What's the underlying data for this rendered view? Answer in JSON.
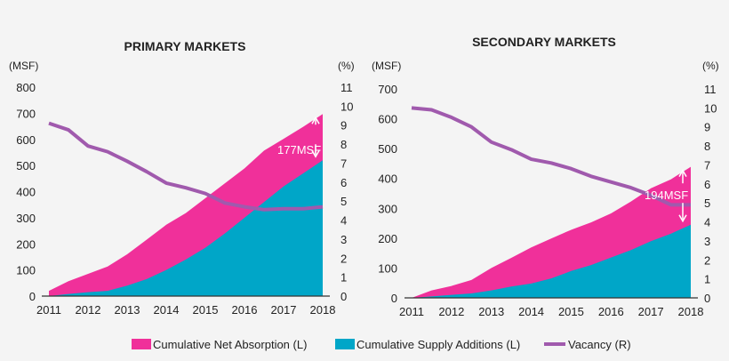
{
  "colors": {
    "absorption": "#f0309a",
    "supply": "#00a6c8",
    "vacancy": "#a05aad",
    "background": "#f4f4f4"
  },
  "legend": [
    {
      "label": "Cumulative Net Absorption (L)",
      "type": "area",
      "color_key": "absorption"
    },
    {
      "label": "Cumulative Supply Additions (L)",
      "type": "area",
      "color_key": "supply"
    },
    {
      "label": "Vacancy (R)",
      "type": "line",
      "color_key": "vacancy"
    }
  ],
  "legend_placement": "bottom",
  "chart_data": [
    {
      "type": "area",
      "title": "PRIMARY MARKETS",
      "ylabel": "(MSF)",
      "y2label": "(%)",
      "ylim": [
        0,
        800
      ],
      "yticks": [
        0,
        100,
        200,
        300,
        400,
        500,
        600,
        700,
        800
      ],
      "y2lim": [
        0,
        11
      ],
      "y2ticks": [
        0,
        1,
        2,
        3,
        4,
        5,
        6,
        7,
        8,
        9,
        10,
        11
      ],
      "xticks": [
        "2011",
        "2012",
        "2013",
        "2014",
        "2015",
        "2016",
        "2017",
        "2018"
      ],
      "x": [
        2011,
        2011.5,
        2012,
        2012.5,
        2013,
        2013.5,
        2014,
        2014.5,
        2015,
        2015.5,
        2016,
        2016.5,
        2017,
        2017.5,
        2018
      ],
      "series": [
        {
          "name": "Cumulative Net Absorption (L)",
          "axis": "left",
          "values": [
            20,
            57,
            85,
            113,
            160,
            216,
            273,
            318,
            375,
            432,
            489,
            557,
            602,
            648,
            697
          ]
        },
        {
          "name": "Cumulative Supply Additions (L)",
          "axis": "left",
          "values": [
            0,
            8,
            15,
            20,
            40,
            65,
            100,
            140,
            185,
            240,
            300,
            360,
            420,
            470,
            520
          ]
        },
        {
          "name": "Vacancy (R)",
          "axis": "right",
          "values": [
            9.1,
            8.75,
            7.9,
            7.6,
            7.1,
            6.55,
            5.95,
            5.7,
            5.4,
            4.9,
            4.7,
            4.55,
            4.6,
            4.6,
            4.7
          ]
        }
      ],
      "annotation": "177MSF",
      "grid": false
    },
    {
      "type": "area",
      "title": "SECONDARY MARKETS",
      "ylabel": "(MSF)",
      "y2label": "(%)",
      "ylim": [
        0,
        700
      ],
      "yticks": [
        0,
        100,
        200,
        300,
        400,
        500,
        600,
        700
      ],
      "y2lim": [
        0,
        11
      ],
      "y2ticks": [
        0,
        1,
        2,
        3,
        4,
        5,
        6,
        7,
        8,
        9,
        10,
        11
      ],
      "xticks": [
        "2011",
        "2012",
        "2013",
        "2014",
        "2015",
        "2016",
        "2017",
        "2018"
      ],
      "x": [
        2011,
        2011.5,
        2012,
        2012.5,
        2013,
        2013.5,
        2014,
        2014.5,
        2015,
        2015.5,
        2016,
        2016.5,
        2017,
        2017.5,
        2018
      ],
      "series": [
        {
          "name": "Cumulative Net Absorption (L)",
          "axis": "left",
          "values": [
            0,
            25,
            40,
            60,
            100,
            134,
            169,
            199,
            228,
            253,
            283,
            323,
            367,
            397,
            439
          ]
        },
        {
          "name": "Cumulative Supply Additions (L)",
          "axis": "left",
          "values": [
            0,
            5,
            10,
            15,
            25,
            38,
            48,
            65,
            90,
            110,
            135,
            160,
            190,
            215,
            245
          ]
        },
        {
          "name": "Vacancy (R)",
          "axis": "right",
          "values": [
            10,
            9.9,
            9.5,
            9.0,
            8.2,
            7.8,
            7.3,
            7.1,
            6.8,
            6.4,
            6.1,
            5.8,
            5.4,
            4.9,
            4.9
          ]
        }
      ],
      "annotation": "194MSF",
      "grid": false
    }
  ]
}
